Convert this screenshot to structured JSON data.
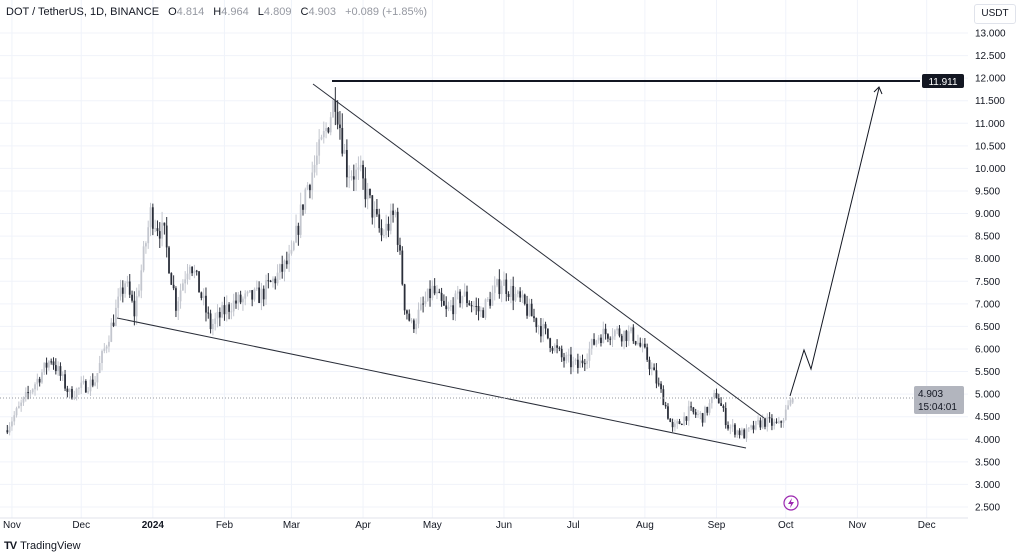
{
  "legend": {
    "symbol": "DOT / TetherUS, 1D, BINANCE",
    "open_label": "O",
    "open": "4.814",
    "high_label": "H",
    "high": "4.964",
    "low_label": "L",
    "low": "4.809",
    "close_label": "C",
    "close": "4.903",
    "change": "+0.089 (+1.85%)"
  },
  "currency": "USDT",
  "brand": "TradingView",
  "price_axis": [
    "13.000",
    "12.500",
    "12.000",
    "11.500",
    "11.000",
    "10.500",
    "10.000",
    "9.500",
    "9.000",
    "8.500",
    "8.000",
    "7.500",
    "7.000",
    "6.500",
    "6.000",
    "5.500",
    "5.000",
    "4.500",
    "4.000",
    "3.500",
    "3.000",
    "2.500"
  ],
  "time_axis": [
    {
      "label": "Nov",
      "day": 3,
      "bold": false
    },
    {
      "label": "Dec",
      "day": 33,
      "bold": false
    },
    {
      "label": "2024",
      "day": 64,
      "bold": true
    },
    {
      "label": "Feb",
      "day": 95,
      "bold": false
    },
    {
      "label": "Mar",
      "day": 124,
      "bold": false
    },
    {
      "label": "Apr",
      "day": 155,
      "bold": false
    },
    {
      "label": "May",
      "day": 185,
      "bold": false
    },
    {
      "label": "Jun",
      "day": 216,
      "bold": false
    },
    {
      "label": "Jul",
      "day": 246,
      "bold": false
    },
    {
      "label": "Aug",
      "day": 277,
      "bold": false
    },
    {
      "label": "Sep",
      "day": 308,
      "bold": false
    },
    {
      "label": "Oct",
      "day": 338,
      "bold": false
    },
    {
      "label": "Nov",
      "day": 369,
      "bold": false
    },
    {
      "label": "Dec",
      "day": 399,
      "bold": false
    }
  ],
  "target_price": {
    "value": 11.911,
    "label": "11.911"
  },
  "last_price": {
    "value": 4.903,
    "label": "4.903",
    "countdown": "15:04:01"
  },
  "colors": {
    "up": "#c3c6ce",
    "down": "#2a2e39",
    "grid": "#f0f3fa",
    "line": "#131722"
  },
  "chart_data": {
    "type": "candlestick",
    "title": "DOT / TetherUS, 1D, BINANCE",
    "ylim": [
      2.5,
      13.0
    ],
    "price_path": [
      {
        "day": 0,
        "price": 4.2
      },
      {
        "day": 20,
        "price": 5.8
      },
      {
        "day": 28,
        "price": 5.0
      },
      {
        "day": 39,
        "price": 5.3
      },
      {
        "day": 46,
        "price": 6.5
      },
      {
        "day": 52,
        "price": 7.5
      },
      {
        "day": 56,
        "price": 6.8
      },
      {
        "day": 63,
        "price": 9.0
      },
      {
        "day": 69,
        "price": 8.5
      },
      {
        "day": 74,
        "price": 7.0
      },
      {
        "day": 80,
        "price": 8.0
      },
      {
        "day": 89,
        "price": 6.5
      },
      {
        "day": 98,
        "price": 7.0
      },
      {
        "day": 111,
        "price": 7.2
      },
      {
        "day": 124,
        "price": 8.0
      },
      {
        "day": 130,
        "price": 9.5
      },
      {
        "day": 137,
        "price": 10.5
      },
      {
        "day": 143,
        "price": 11.6
      },
      {
        "day": 148,
        "price": 10.0
      },
      {
        "day": 154,
        "price": 9.8
      },
      {
        "day": 163,
        "price": 8.5
      },
      {
        "day": 169,
        "price": 9.0
      },
      {
        "day": 173,
        "price": 7.0
      },
      {
        "day": 176,
        "price": 6.5
      },
      {
        "day": 185,
        "price": 7.3
      },
      {
        "day": 191,
        "price": 6.8
      },
      {
        "day": 198,
        "price": 7.2
      },
      {
        "day": 206,
        "price": 6.8
      },
      {
        "day": 215,
        "price": 7.5
      },
      {
        "day": 224,
        "price": 7.0
      },
      {
        "day": 233,
        "price": 6.4
      },
      {
        "day": 241,
        "price": 5.8
      },
      {
        "day": 248,
        "price": 5.6
      },
      {
        "day": 257,
        "price": 6.3
      },
      {
        "day": 263,
        "price": 6.4
      },
      {
        "day": 272,
        "price": 6.3
      },
      {
        "day": 278,
        "price": 5.8
      },
      {
        "day": 285,
        "price": 4.9
      },
      {
        "day": 289,
        "price": 4.2
      },
      {
        "day": 296,
        "price": 4.6
      },
      {
        "day": 302,
        "price": 4.5
      },
      {
        "day": 308,
        "price": 5.0
      },
      {
        "day": 313,
        "price": 4.3
      },
      {
        "day": 320,
        "price": 4.1
      },
      {
        "day": 328,
        "price": 4.4
      },
      {
        "day": 335,
        "price": 4.3
      },
      {
        "day": 341,
        "price": 4.903
      }
    ]
  }
}
